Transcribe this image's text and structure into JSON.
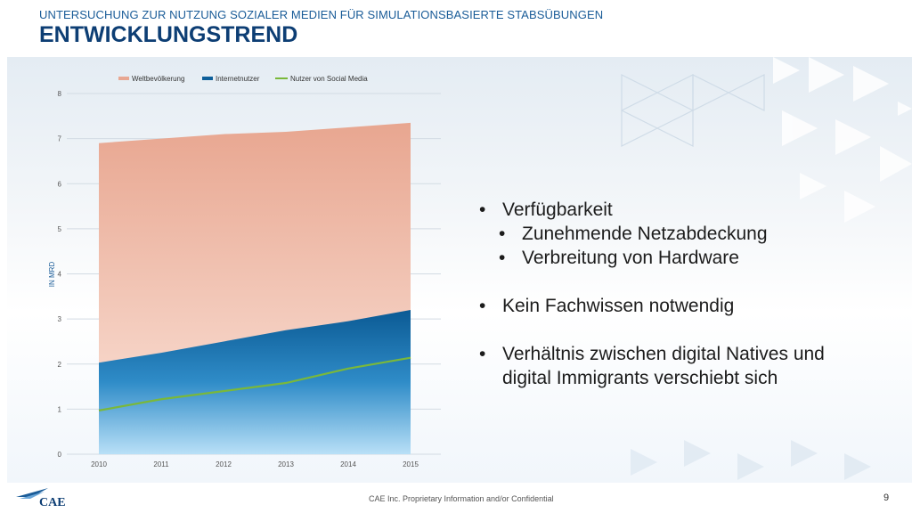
{
  "header": {
    "subtitle": "UNTERSUCHUNG ZUR NUTZUNG SOZIALER MEDIEN FÜR SIMULATIONSBASIERTE STABSÜBUNGEN",
    "title": "ENTWICKLUNGSTREND"
  },
  "chart_data": {
    "type": "area",
    "x": [
      2010,
      2011,
      2012,
      2013,
      2014,
      2015
    ],
    "ylabel": "IN MRD",
    "ylim": [
      0,
      8
    ],
    "yticks": [
      0,
      1,
      2,
      3,
      4,
      5,
      6,
      7,
      8
    ],
    "grid": true,
    "legend_position": "top",
    "series": [
      {
        "name": "Weltbevölkerung",
        "kind": "area",
        "color": "#e8a792",
        "values": [
          6.9,
          7.0,
          7.1,
          7.15,
          7.25,
          7.35
        ]
      },
      {
        "name": "Internetnutzer",
        "kind": "area",
        "color": "#0e5f9a",
        "values": [
          2.03,
          2.25,
          2.5,
          2.75,
          2.95,
          3.2
        ]
      },
      {
        "name": "Nutzer von Social Media",
        "kind": "line",
        "color": "#7ab83a",
        "values": [
          0.97,
          1.22,
          1.4,
          1.58,
          1.9,
          2.14
        ]
      }
    ]
  },
  "bullets": [
    {
      "level": 1,
      "text": "Verfügbarkeit"
    },
    {
      "level": 2,
      "text": "Zunehmende Netzabdeckung"
    },
    {
      "level": 2,
      "text": "Verbreitung von Hardware"
    },
    {
      "level": 0,
      "text": ""
    },
    {
      "level": 1,
      "text": "Kein Fachwissen notwendig"
    },
    {
      "level": 0,
      "text": ""
    },
    {
      "level": 1,
      "text": "Verhältnis zwischen digital Natives und"
    },
    {
      "level": 3,
      "text": "digital Immigrants verschiebt sich"
    }
  ],
  "footer": {
    "confidential": "CAE Inc. Proprietary Information and/or Confidential",
    "page_number": "9",
    "logo_text": "CAE"
  },
  "colors": {
    "brand": "#0d3e74",
    "accent": "#1a5c98"
  }
}
